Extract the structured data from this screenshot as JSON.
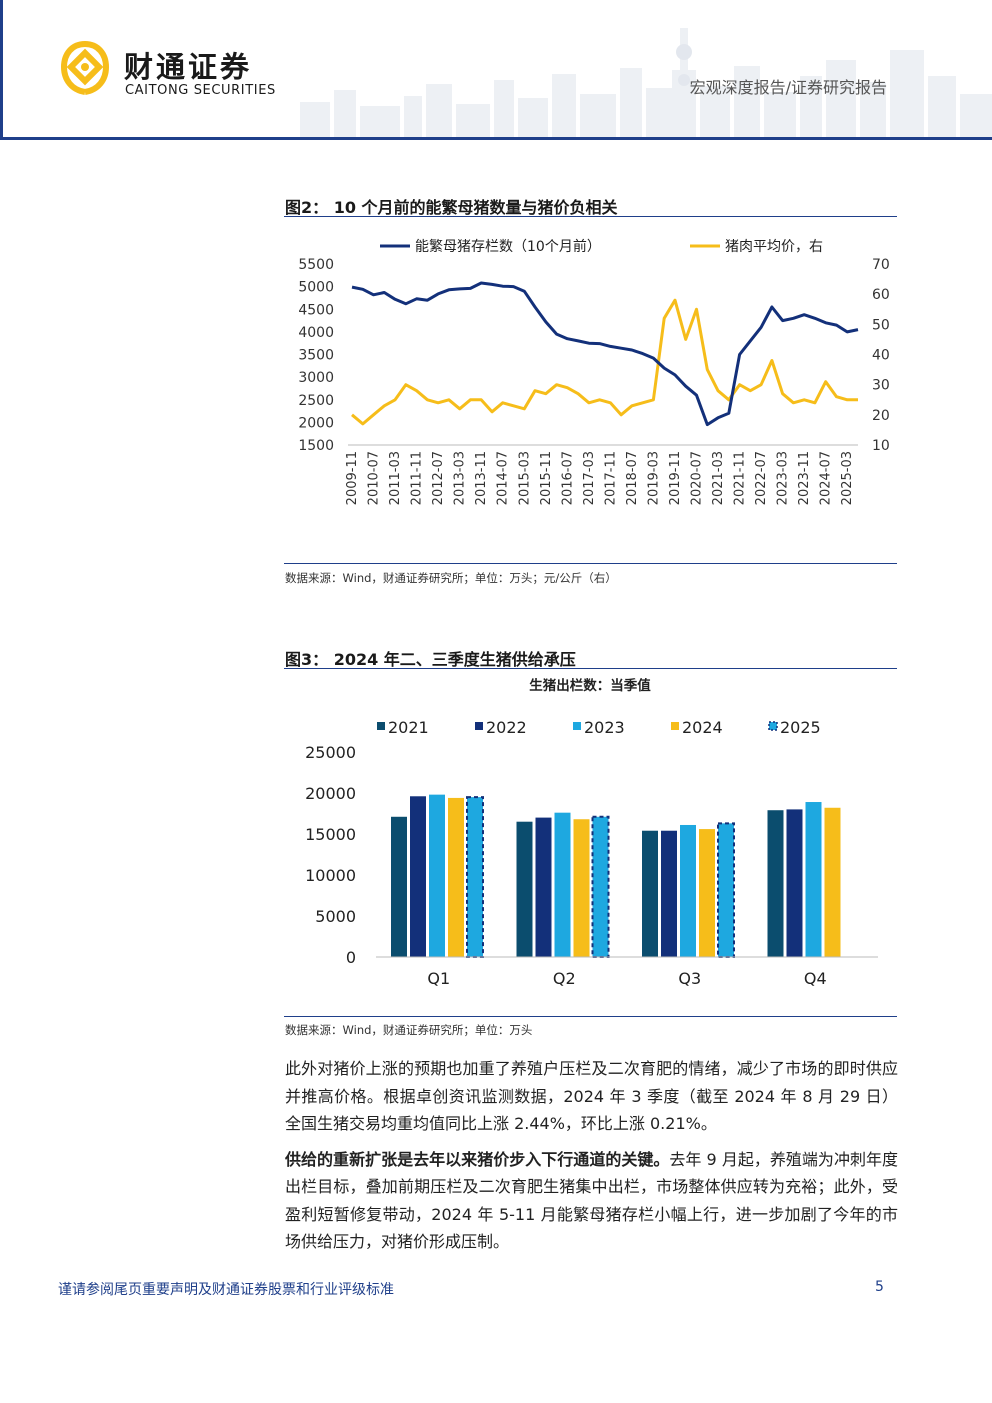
{
  "header": {
    "brand_cn": "财通证券",
    "brand_en": "CAITONG SECURITIES",
    "doc_type": "宏观深度报告/证券研究报告"
  },
  "colors": {
    "navy": "#1f3f8a",
    "dark_teal": "#0b4d6e",
    "navy2": "#13307a",
    "sky": "#1ea8e0",
    "gold": "#f6bd1a"
  },
  "figure2": {
    "title": "图2：  10 个月前的能繁母猪数量与猪价负相关",
    "source": "数据来源：Wind，财通证券研究所；单位：万头；元/公斤（右）",
    "chart_data": {
      "type": "line",
      "title": "10 个月前的能繁母猪数量与猪价负相关",
      "series": [
        {
          "name": "能繁母猪存栏数（10个月前）",
          "axis": "left",
          "x": [
            "2009-11",
            "2010-03",
            "2010-07",
            "2010-11",
            "2011-03",
            "2011-07",
            "2011-11",
            "2012-03",
            "2012-07",
            "2012-11",
            "2013-03",
            "2013-07",
            "2013-11",
            "2014-03",
            "2014-07",
            "2014-11",
            "2015-03",
            "2015-07",
            "2015-11",
            "2016-03",
            "2016-07",
            "2016-11",
            "2017-03",
            "2017-07",
            "2017-11",
            "2018-03",
            "2018-07",
            "2018-11",
            "2019-03",
            "2019-07",
            "2019-11",
            "2020-03",
            "2020-07",
            "2020-11",
            "2021-03",
            "2021-07",
            "2021-11",
            "2022-03",
            "2022-07",
            "2022-11",
            "2023-03",
            "2023-07",
            "2023-11",
            "2024-03",
            "2024-07",
            "2024-11",
            "2025-03",
            "2025-07"
          ],
          "values": [
            4990,
            4940,
            4820,
            4870,
            4720,
            4620,
            4730,
            4700,
            4840,
            4930,
            4950,
            4960,
            5080,
            5050,
            5010,
            5000,
            4900,
            4550,
            4220,
            3950,
            3850,
            3800,
            3750,
            3740,
            3680,
            3640,
            3600,
            3520,
            3420,
            3200,
            3050,
            2800,
            2600,
            1950,
            2100,
            2200,
            3500,
            3800,
            4100,
            4550,
            4250,
            4300,
            4380,
            4300,
            4200,
            4150,
            4000,
            4050
          ]
        },
        {
          "name": "猪肉平均价，右",
          "axis": "right",
          "x": [
            "2009-11",
            "2010-03",
            "2010-07",
            "2010-11",
            "2011-03",
            "2011-07",
            "2011-11",
            "2012-03",
            "2012-07",
            "2012-11",
            "2013-03",
            "2013-07",
            "2013-11",
            "2014-03",
            "2014-07",
            "2014-11",
            "2015-03",
            "2015-07",
            "2015-11",
            "2016-03",
            "2016-07",
            "2016-11",
            "2017-03",
            "2017-07",
            "2017-11",
            "2018-03",
            "2018-07",
            "2018-11",
            "2019-03",
            "2019-07",
            "2019-11",
            "2020-03",
            "2020-07",
            "2020-11",
            "2021-03",
            "2021-07",
            "2021-11",
            "2022-03",
            "2022-07",
            "2022-11",
            "2023-03",
            "2023-07",
            "2023-11",
            "2024-03",
            "2024-07",
            "2024-11",
            "2025-03",
            "2025-07"
          ],
          "values": [
            20,
            17,
            20,
            23,
            25,
            30,
            28,
            25,
            24,
            25,
            22,
            25,
            25,
            21,
            24,
            23,
            22,
            28,
            27,
            30,
            29,
            27,
            24,
            25,
            24,
            20,
            23,
            24,
            25,
            52,
            58,
            45,
            55,
            35,
            28,
            25,
            30,
            28,
            30,
            38,
            27,
            24,
            25,
            24,
            31,
            26,
            25,
            25
          ]
        }
      ],
      "x_tick_labels": [
        "2009-11",
        "2010-07",
        "2011-03",
        "2011-11",
        "2012-07",
        "2013-03",
        "2013-11",
        "2014-07",
        "2015-03",
        "2015-11",
        "2016-07",
        "2017-03",
        "2017-11",
        "2018-07",
        "2019-03",
        "2019-11",
        "2020-07",
        "2021-03",
        "2021-11",
        "2022-07",
        "2023-03",
        "2023-11",
        "2024-07",
        "2025-03"
      ],
      "ylim_left": [
        1500,
        5500
      ],
      "yticks_left": [
        "5500",
        "5000",
        "4500",
        "4000",
        "3500",
        "3000",
        "2500",
        "2000",
        "1500"
      ],
      "ylim_right": [
        10,
        70
      ],
      "yticks_right": [
        "70",
        "60",
        "50",
        "40",
        "30",
        "20",
        "10"
      ],
      "legend": [
        "能繁母猪存栏数（10个月前）",
        "猪肉平均价，右"
      ],
      "legend_position": "top"
    }
  },
  "figure3": {
    "title": "图3：  2024 年二、三季度生猪供给承压",
    "source": "数据来源：Wind，财通证券研究所；单位：万头",
    "chart_data": {
      "type": "bar",
      "title": "生猪出栏数：当季值",
      "categories": [
        "Q1",
        "Q2",
        "Q3",
        "Q4"
      ],
      "series": [
        {
          "name": "2021",
          "values": [
            17100,
            16500,
            15400,
            17900
          ]
        },
        {
          "name": "2022",
          "values": [
            19600,
            17000,
            15400,
            18000
          ]
        },
        {
          "name": "2023",
          "values": [
            19800,
            17600,
            16100,
            18900
          ]
        },
        {
          "name": "2024",
          "values": [
            19400,
            16800,
            15600,
            18200
          ]
        },
        {
          "name": "2025",
          "values": [
            19500,
            17100,
            16300,
            null
          ]
        }
      ],
      "ylim": [
        0,
        25000
      ],
      "yticks": [
        "25000",
        "20000",
        "15000",
        "10000",
        "5000",
        "0"
      ],
      "legend_position": "top"
    }
  },
  "body": {
    "para1": "此外对猪价上涨的预期也加重了养殖户压栏及二次育肥的情绪，减少了市场的即时供应并推高价格。根据卓创资讯监测数据，2024 年 3 季度（截至 2024 年 8 月 29 日）全国生猪交易均重均值同比上涨 2.44%，环比上涨 0.21%。",
    "para2_lead": "供给的重新扩张是去年以来猪价步入下行通道的关键。",
    "para2_rest": "去年 9 月起，养殖端为冲刺年度出栏目标，叠加前期压栏及二次育肥生猪集中出栏，市场整体供应转为充裕；此外，受盈利短暂修复带动，2024 年 5-11 月能繁母猪存栏小幅上行，进一步加剧了今年的市场供给压力，对猪价形成压制。"
  },
  "footer": {
    "note": "谨请参阅尾页重要声明及财通证券股票和行业评级标准",
    "page": "5"
  }
}
